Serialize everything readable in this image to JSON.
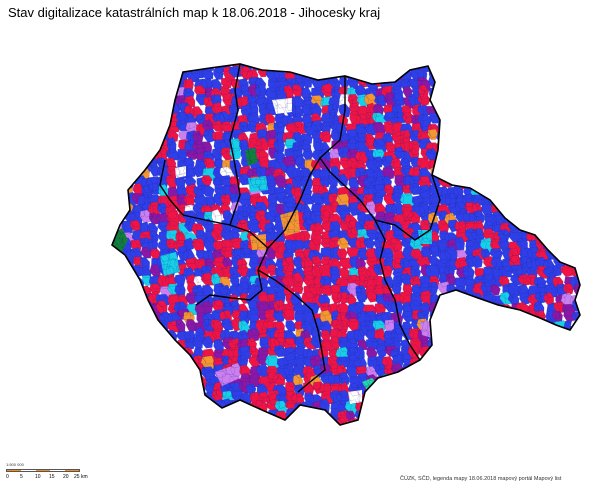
{
  "title": "Stav digitalizace katastrálních map k 18.06.2018 - Jihocesky kraj",
  "colors": {
    "digitized": "#2f3fe8",
    "in_progress": "#ee1546",
    "purple": "#8a18a6",
    "orange": "#f5972f",
    "cyan": "#16d0e8",
    "green": "#12803a",
    "teal": "#20d8a8",
    "lavender": "#cc80f0",
    "white": "#ffffff",
    "border": "#000000"
  },
  "scale": {
    "ratio": "1:500 000",
    "labels": [
      "0",
      "5",
      "10",
      "15",
      "20",
      "25 km"
    ]
  },
  "copyright": "ČÚZK, SČD, legenda mapy 18.06.2018 mapový portál Mapový list"
}
